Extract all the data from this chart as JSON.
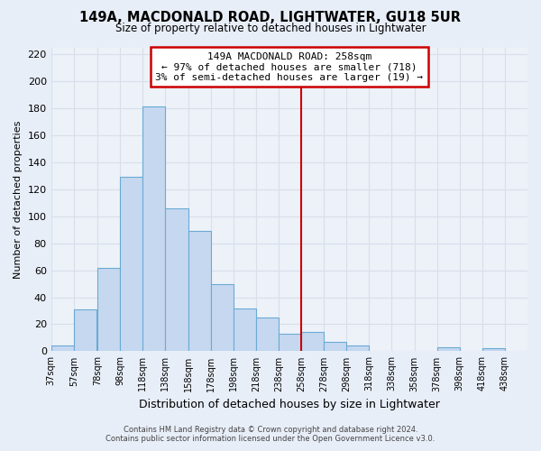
{
  "title": "149A, MACDONALD ROAD, LIGHTWATER, GU18 5UR",
  "subtitle": "Size of property relative to detached houses in Lightwater",
  "xlabel": "Distribution of detached houses by size in Lightwater",
  "ylabel": "Number of detached properties",
  "bin_labels": [
    "37sqm",
    "57sqm",
    "78sqm",
    "98sqm",
    "118sqm",
    "138sqm",
    "158sqm",
    "178sqm",
    "198sqm",
    "218sqm",
    "238sqm",
    "258sqm",
    "278sqm",
    "298sqm",
    "318sqm",
    "338sqm",
    "358sqm",
    "378sqm",
    "398sqm",
    "418sqm",
    "438sqm"
  ],
  "bar_values": [
    4,
    31,
    62,
    129,
    181,
    106,
    89,
    50,
    32,
    25,
    13,
    14,
    7,
    4,
    0,
    0,
    0,
    3,
    0,
    2,
    0
  ],
  "bar_color": "#c5d8f0",
  "bar_edge_color": "#6aaad4",
  "vline_color": "#cc0000",
  "annotation_title": "149A MACDONALD ROAD: 258sqm",
  "annotation_line1": "← 97% of detached houses are smaller (718)",
  "annotation_line2": "3% of semi-detached houses are larger (19) →",
  "annotation_box_color": "#ffffff",
  "annotation_box_edge": "#cc0000",
  "ylim": [
    0,
    225
  ],
  "yticks": [
    0,
    20,
    40,
    60,
    80,
    100,
    120,
    140,
    160,
    180,
    200,
    220
  ],
  "footer1": "Contains HM Land Registry data © Crown copyright and database right 2024.",
  "footer2": "Contains public sector information licensed under the Open Government Licence v3.0.",
  "background_color": "#e8eef8",
  "plot_bg_color": "#edf2f9",
  "grid_color": "#d8dfe8"
}
